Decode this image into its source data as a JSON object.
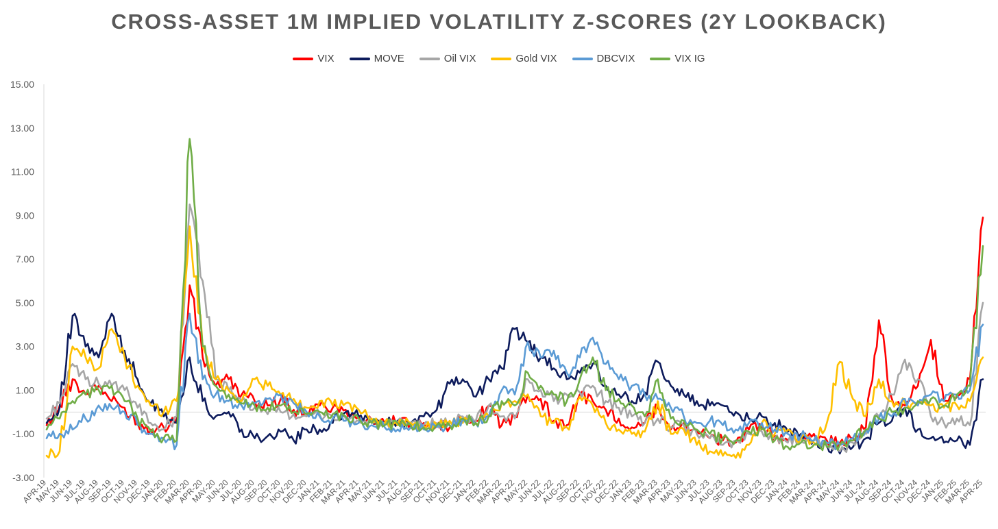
{
  "chart_data": {
    "type": "line",
    "title": "CROSS-ASSET 1M IMPLIED VOLATILITY Z-SCORES (2Y LOOKBACK)",
    "xlabel": "",
    "ylabel": "",
    "ylim": [
      -3,
      15
    ],
    "y_ticks": [
      "15.00",
      "13.00",
      "11.00",
      "9.00",
      "7.00",
      "5.00",
      "3.00",
      "1.00",
      "-1.00",
      "-3.00"
    ],
    "y_tick_values": [
      15,
      13,
      11,
      9,
      7,
      5,
      3,
      1,
      -1,
      -3
    ],
    "categories": [
      "APR-19",
      "MAY-19",
      "JUN-19",
      "JUL-19",
      "AUG-19",
      "SEP-19",
      "OCT-19",
      "NOV-19",
      "DEC-19",
      "JAN-20",
      "FEB-20",
      "MAR-20",
      "APR-20",
      "MAY-20",
      "JUN-20",
      "JUL-20",
      "AUG-20",
      "SEP-20",
      "OCT-20",
      "NOV-20",
      "DEC-20",
      "JAN-21",
      "FEB-21",
      "MAR-21",
      "APR-21",
      "MAY-21",
      "JUN-21",
      "JUL-21",
      "AUG-21",
      "SEP-21",
      "OCT-21",
      "NOV-21",
      "DEC-21",
      "JAN-22",
      "FEB-22",
      "MAR-22",
      "APR-22",
      "MAY-22",
      "JUN-22",
      "JUL-22",
      "AUG-22",
      "SEP-22",
      "OCT-22",
      "NOV-22",
      "DEC-22",
      "JAN-23",
      "FEB-23",
      "MAR-23",
      "APR-23",
      "MAY-23",
      "JUN-23",
      "JUL-23",
      "AUG-23",
      "SEP-23",
      "OCT-23",
      "NOV-23",
      "DEC-23",
      "JAN-24",
      "FEB-24",
      "MAR-24",
      "APR-24",
      "MAY-24",
      "JUN-24",
      "JUL-24",
      "AUG-24",
      "SEP-24",
      "OCT-24",
      "NOV-24",
      "DEC-24",
      "JAN-25",
      "FEB-25",
      "MAR-25",
      "APR-25"
    ],
    "legend_position": "top-center",
    "grid": false,
    "series": [
      {
        "name": "VIX",
        "color": "#ff0000",
        "values": [
          -0.6,
          0.3,
          1.5,
          0.8,
          1.2,
          0.5,
          0.2,
          -0.5,
          -0.8,
          -0.7,
          -0.3,
          5.8,
          2.5,
          1.2,
          1.5,
          0.8,
          0.5,
          0.3,
          0.6,
          0.1,
          -0.1,
          0.3,
          0.2,
          0.1,
          -0.2,
          -0.4,
          -0.5,
          -0.4,
          -0.6,
          -0.5,
          -0.6,
          -0.7,
          -0.3,
          -0.4,
          0.3,
          -0.6,
          -0.2,
          0.8,
          0.6,
          -0.4,
          -0.6,
          0.8,
          0.5,
          0.1,
          -0.3,
          -0.7,
          -0.5,
          0.2,
          -0.8,
          -0.5,
          -0.9,
          -1.2,
          -1.3,
          -1.4,
          -0.8,
          -0.7,
          -1.1,
          -1.3,
          -1.2,
          -1.0,
          -1.3,
          -1.4,
          -1.2,
          -0.7,
          4.2,
          0.6,
          0.3,
          1.2,
          3.3,
          0.5,
          0.7,
          1.5,
          8.9
        ]
      },
      {
        "name": "MOVE",
        "color": "#0d1b5c",
        "values": [
          -0.5,
          0.2,
          4.4,
          3.0,
          2.5,
          4.5,
          2.8,
          1.5,
          0.4,
          -0.2,
          -0.5,
          2.5,
          0.5,
          -0.2,
          0.0,
          -0.8,
          -1.2,
          -1.1,
          -0.9,
          -1.3,
          -0.8,
          -0.8,
          -0.5,
          0.0,
          -0.2,
          -0.4,
          -0.5,
          -0.4,
          -0.5,
          -0.2,
          0.1,
          1.3,
          1.5,
          0.7,
          1.5,
          2.0,
          3.8,
          3.2,
          2.5,
          2.0,
          1.5,
          1.8,
          2.2,
          1.2,
          0.8,
          0.5,
          0.9,
          2.3,
          1.2,
          0.8,
          0.5,
          0.3,
          0.3,
          0.0,
          -0.3,
          -0.2,
          -0.5,
          -0.9,
          -1.0,
          -1.3,
          -1.5,
          -1.9,
          -1.6,
          -1.2,
          -0.5,
          -0.4,
          0.2,
          -0.8,
          -1.2,
          -1.4,
          -1.3,
          -1.5,
          1.5
        ]
      },
      {
        "name": "Oil VIX",
        "color": "#a6a6a6",
        "values": [
          -0.3,
          0.4,
          2.2,
          1.5,
          1.3,
          1.2,
          1.0,
          0.2,
          -0.5,
          -0.8,
          -0.2,
          9.5,
          6.0,
          1.5,
          1.0,
          0.5,
          0.2,
          -0.1,
          0.0,
          -0.1,
          -0.2,
          -0.1,
          -0.2,
          -0.3,
          -0.4,
          -0.5,
          -0.6,
          -0.5,
          -0.5,
          -0.6,
          -0.5,
          -0.5,
          -0.2,
          -0.4,
          0.3,
          -0.2,
          -0.3,
          1.5,
          1.0,
          0.5,
          0.8,
          0.9,
          1.2,
          0.5,
          0.2,
          -0.2,
          -0.5,
          -0.3,
          -0.7,
          -0.6,
          -1.0,
          -1.2,
          -1.5,
          -1.3,
          -1.0,
          -0.9,
          -1.2,
          -1.4,
          -1.2,
          -1.3,
          -1.5,
          -1.8,
          -1.4,
          -1.0,
          -0.2,
          0.8,
          2.4,
          1.5,
          -0.2,
          -0.5,
          -0.3,
          -0.6,
          5.0
        ]
      },
      {
        "name": "Gold VIX",
        "color": "#ffc000",
        "values": [
          -2.0,
          -1.8,
          3.0,
          2.5,
          2.0,
          3.8,
          2.5,
          1.2,
          0.3,
          0.0,
          0.5,
          8.5,
          3.0,
          1.5,
          1.0,
          0.5,
          1.5,
          1.2,
          0.8,
          0.6,
          0.2,
          0.5,
          0.3,
          0.4,
          0.1,
          -0.3,
          -0.5,
          -0.6,
          -0.5,
          -0.7,
          -0.6,
          -0.4,
          -0.5,
          -0.5,
          -0.2,
          0.4,
          0.5,
          0.8,
          -0.2,
          -0.5,
          -0.7,
          0.7,
          0.3,
          -0.5,
          -0.8,
          -1.0,
          -0.9,
          0.5,
          -1.0,
          -0.8,
          -1.5,
          -1.8,
          -2.0,
          -2.1,
          -1.5,
          -0.5,
          -1.0,
          -0.8,
          -1.2,
          -1.4,
          -0.5,
          2.3,
          0.6,
          -0.2,
          1.5,
          0.5,
          0.4,
          0.3,
          0.3,
          0.2,
          0.3,
          0.5,
          2.5
        ]
      },
      {
        "name": "DBCVIX",
        "color": "#5b9bd5",
        "values": [
          -1.2,
          -1.0,
          -0.8,
          -0.3,
          0.3,
          0.2,
          0.0,
          -0.6,
          -1.0,
          -1.2,
          -1.5,
          4.5,
          1.5,
          0.8,
          0.5,
          0.3,
          0.4,
          0.6,
          0.8,
          0.4,
          0.0,
          -0.2,
          -0.3,
          -0.4,
          -0.5,
          -0.6,
          -0.7,
          -0.8,
          -0.7,
          -0.8,
          -0.7,
          -0.6,
          -0.3,
          -0.5,
          -0.2,
          1.0,
          0.8,
          3.2,
          2.5,
          2.8,
          1.8,
          2.5,
          3.4,
          2.2,
          1.5,
          1.2,
          0.8,
          0.6,
          0.2,
          -0.2,
          -0.5,
          -0.4,
          -0.6,
          -0.8,
          -0.5,
          -0.5,
          -0.8,
          -1.0,
          -1.1,
          -1.3,
          -1.4,
          -1.5,
          -1.2,
          -0.8,
          -0.3,
          -0.2,
          0.6,
          0.3,
          0.8,
          0.5,
          0.8,
          1.0,
          4.0
        ]
      },
      {
        "name": "VIX IG",
        "color": "#70ad47",
        "values": [
          -0.8,
          -0.3,
          0.5,
          0.8,
          1.0,
          1.2,
          0.5,
          -0.3,
          -0.9,
          -1.2,
          -1.3,
          12.5,
          3.0,
          1.2,
          0.8,
          0.4,
          0.3,
          0.2,
          0.3,
          0.0,
          -0.1,
          0.0,
          -0.1,
          -0.2,
          -0.3,
          -0.5,
          -0.6,
          -0.5,
          -0.6,
          -0.7,
          -0.6,
          -0.6,
          -0.3,
          -0.5,
          -0.2,
          0.5,
          0.3,
          1.8,
          1.2,
          0.8,
          0.5,
          1.5,
          2.5,
          1.0,
          0.6,
          0.3,
          -0.2,
          1.5,
          -0.3,
          -0.4,
          -0.8,
          -1.0,
          -1.2,
          -1.3,
          -0.9,
          -0.8,
          -1.3,
          -1.6,
          -1.4,
          -1.5,
          -1.6,
          -1.5,
          -1.3,
          -0.8,
          -0.3,
          0.0,
          0.2,
          0.5,
          0.6,
          0.3,
          0.8,
          1.2,
          7.6
        ]
      }
    ]
  }
}
